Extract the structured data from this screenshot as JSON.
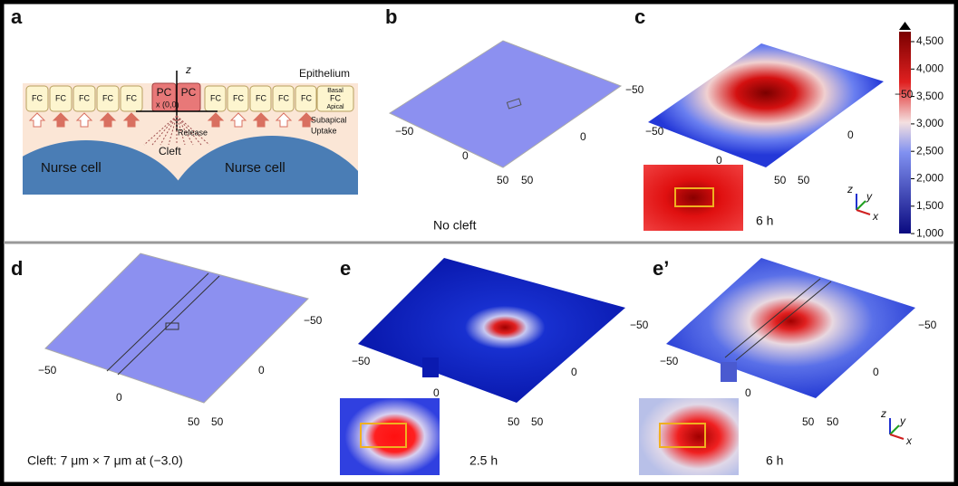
{
  "figure": {
    "a": {
      "label": "a",
      "z": "z",
      "x_origin": "x (0,0)",
      "epithelium": "Epithelium",
      "fc": [
        "FC",
        "FC",
        "FC",
        "FC",
        "FC",
        "FC",
        "FC",
        "FC",
        "FC",
        "FC"
      ],
      "pc": [
        "PC",
        "PC"
      ],
      "basal": "Basal",
      "fc_key": "FC",
      "apical": "Apical",
      "subapical": "Subapical",
      "uptake": "Uptake",
      "release": "Release",
      "cleft": "Cleft",
      "nurse_cells": [
        "Nurse cell",
        "Nurse cell"
      ]
    },
    "b": {
      "label": "b",
      "ticks": [
        "−50",
        "0",
        "50",
        "50",
        "0",
        "−50"
      ],
      "caption": "No cleft"
    },
    "c": {
      "label": "c",
      "ticks": [
        "−50",
        "0",
        "50",
        "50",
        "0",
        "−50"
      ],
      "caption": "6 h",
      "colorbar_ticks": [
        "4,500",
        "4,000",
        "3,500",
        "3,000",
        "2,500",
        "2,000",
        "1,500",
        "1,000"
      ],
      "axes": [
        "z",
        "y",
        "x"
      ]
    },
    "d": {
      "label": "d",
      "ticks": [
        "−50",
        "0",
        "50",
        "50",
        "0",
        "−50"
      ],
      "caption": "Cleft: 7 μm × 7 μm at (−3.0)"
    },
    "e": {
      "label": "e",
      "ticks": [
        "−50",
        "0",
        "50",
        "50",
        "0",
        "−50"
      ],
      "caption": "2.5 h"
    },
    "e2": {
      "label": "e’",
      "ticks": [
        "−50",
        "0",
        "50",
        "50",
        "0",
        "−50"
      ],
      "caption": "6 h",
      "axes": [
        "z",
        "y",
        "x"
      ]
    }
  }
}
